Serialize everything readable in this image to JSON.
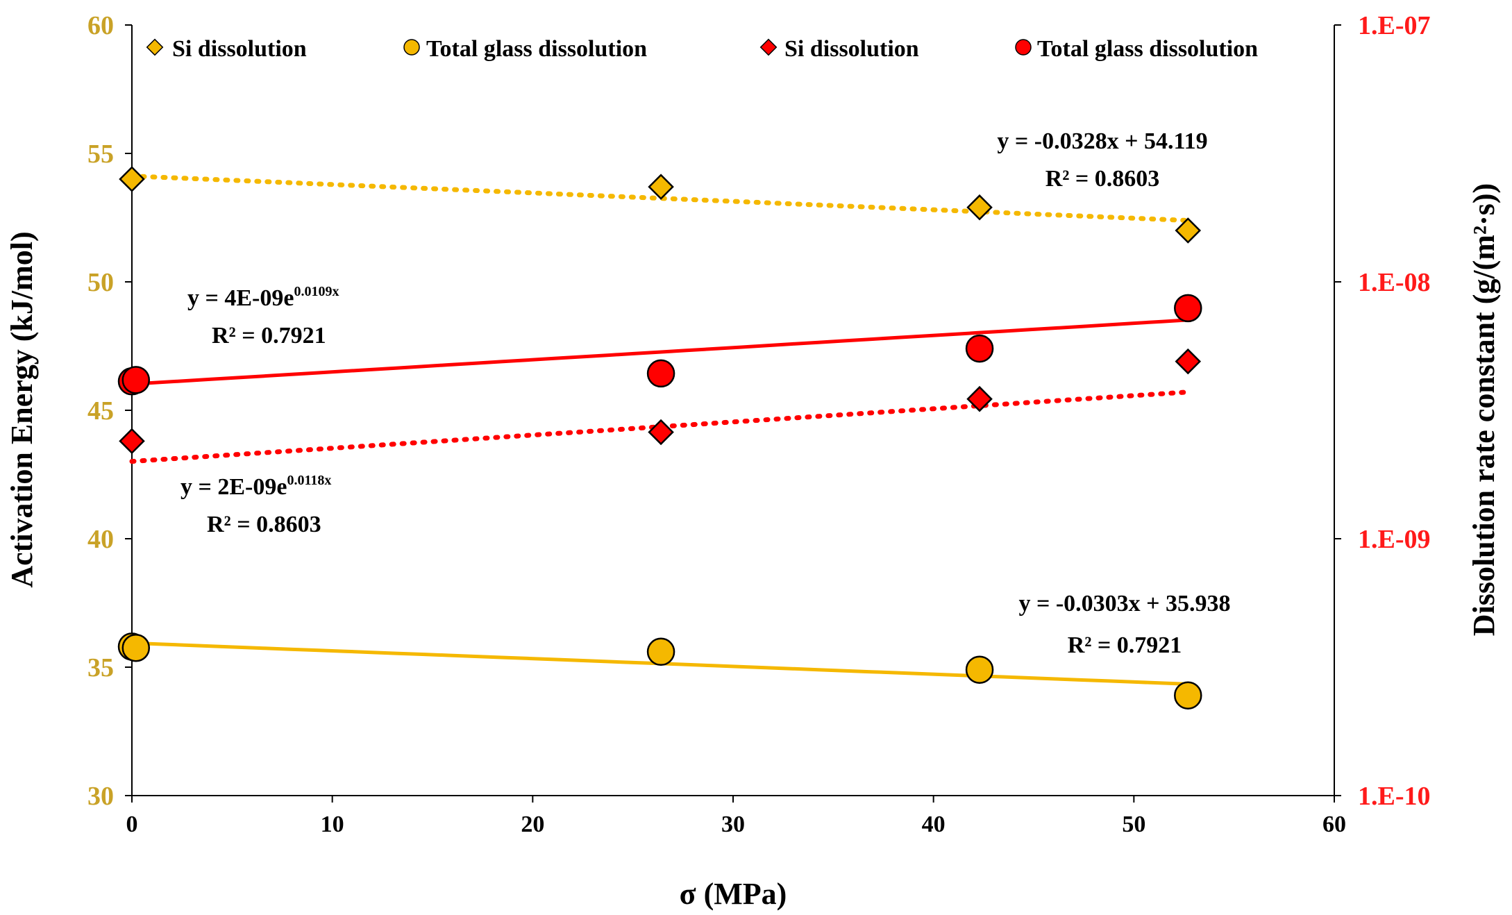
{
  "chart_data": {
    "type": "scatter",
    "xlabel": "σ (MPa)",
    "ylabel_left": "Activation Energy (kJ/mol)",
    "ylabel_right": "Dissolution rate constant (g/(m²·s))",
    "xlim": [
      0,
      60
    ],
    "ylim_left": [
      30,
      60
    ],
    "ylim_right_log": [
      1e-10,
      1e-07
    ],
    "x_ticks": [
      "0",
      "10",
      "20",
      "30",
      "40",
      "50",
      "60"
    ],
    "left_ticks": [
      "30",
      "35",
      "40",
      "45",
      "50",
      "55",
      "60"
    ],
    "right_ticks": [
      "1.E-10",
      "1.E-09",
      "1.E-08",
      "1.E-07"
    ],
    "legend": [
      "Si dissolution",
      "Total glass dissolution",
      "Si dissolution",
      "Total glass dissolution"
    ],
    "series": [
      {
        "name": "Si dissolution",
        "axis": "left",
        "marker": "diamond",
        "color": "#f5b800",
        "x": [
          0,
          26.4,
          42.3,
          52.7
        ],
        "y": [
          54.0,
          53.7,
          52.9,
          52.0
        ],
        "trend": {
          "kind": "linear",
          "slope": -0.0328,
          "intercept": 54.119,
          "style": "dotted"
        }
      },
      {
        "name": "Total glass dissolution",
        "axis": "left",
        "marker": "circle",
        "color": "#f5b800",
        "x": [
          0,
          0.2,
          26.4,
          42.3,
          52.7
        ],
        "y": [
          35.8,
          35.75,
          35.6,
          34.9,
          33.9
        ],
        "trend": {
          "kind": "linear",
          "slope": -0.0303,
          "intercept": 35.938,
          "style": "solid"
        }
      },
      {
        "name": "Si dissolution",
        "axis": "right",
        "marker": "diamond",
        "color": "#ff0000",
        "x": [
          0,
          26.4,
          42.3,
          52.7
        ],
        "y": [
          2.4e-09,
          2.6e-09,
          3.5e-09,
          4.9e-09
        ],
        "trend": {
          "kind": "exponential",
          "a": 2e-09,
          "b": 0.0118,
          "style": "dotted"
        }
      },
      {
        "name": "Total glass dissolution",
        "axis": "right",
        "marker": "circle",
        "color": "#ff0000",
        "x": [
          0,
          0.2,
          26.4,
          42.3,
          52.7
        ],
        "y": [
          4.1e-09,
          4.15e-09,
          4.4e-09,
          5.5e-09,
          7.9e-09
        ],
        "trend": {
          "kind": "exponential",
          "a": 4e-09,
          "b": 0.0109,
          "style": "solid"
        }
      }
    ],
    "annotations": [
      {
        "eq": "y = -0.0328x + 54.119",
        "r2": "R² = 0.8603"
      },
      {
        "eq_base": "y = 4E-09e",
        "eq_exp": "0.0109x",
        "r2": "R² = 0.7921"
      },
      {
        "eq_base": "y = 2E-09e",
        "eq_exp": "0.0118x",
        "r2": "R² = 0.8603"
      },
      {
        "eq": "y = -0.0303x + 35.938",
        "r2": "R² = 0.7921"
      }
    ]
  }
}
